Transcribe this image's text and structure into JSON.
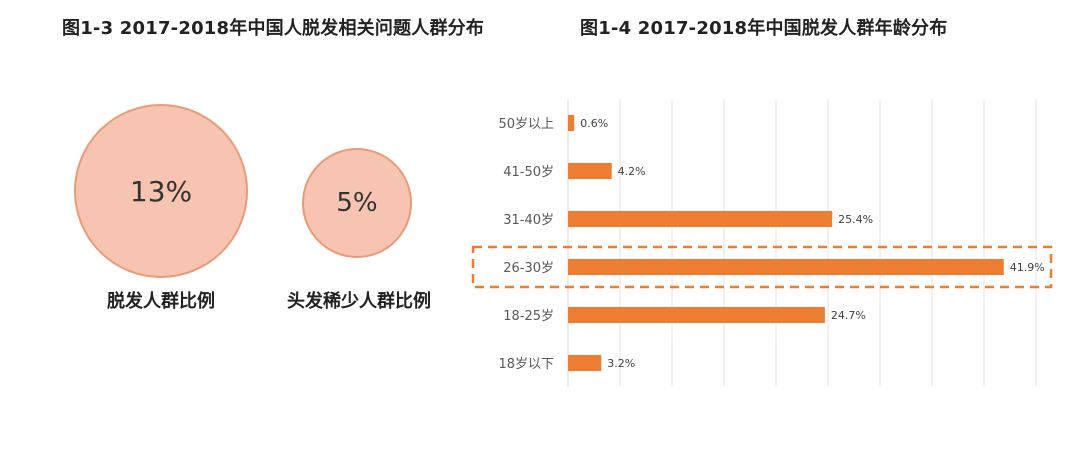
{
  "left_figure": {
    "title": "图1-3 2017-2018年中国人脱发相关问题人群分布",
    "bubbles": [
      {
        "value": "13%",
        "label": "脱发人群比例",
        "color": "#f6c4b0"
      },
      {
        "value": "5%",
        "label": "头发稀少人群比例",
        "color": "#f6c4b0"
      }
    ]
  },
  "right_figure": {
    "title": "图1-4 2017-2018年中国脱发人群年龄分布"
  },
  "chart_data": {
    "type": "bar",
    "orientation": "horizontal",
    "categories": [
      "50岁以上",
      "41-50岁",
      "31-40岁",
      "26-30岁",
      "18-25岁",
      "18岁以下"
    ],
    "values": [
      0.6,
      4.2,
      25.4,
      41.9,
      24.7,
      3.2
    ],
    "value_labels": [
      "0.6%",
      "4.2%",
      "25.4%",
      "41.9%",
      "24.7%",
      "3.2%"
    ],
    "unit": "%",
    "xlim": [
      0,
      45
    ],
    "grid": true,
    "highlighted_category": "26-30岁",
    "bar_color": "#ed7d31",
    "highlight_color": "#ed7d31"
  }
}
